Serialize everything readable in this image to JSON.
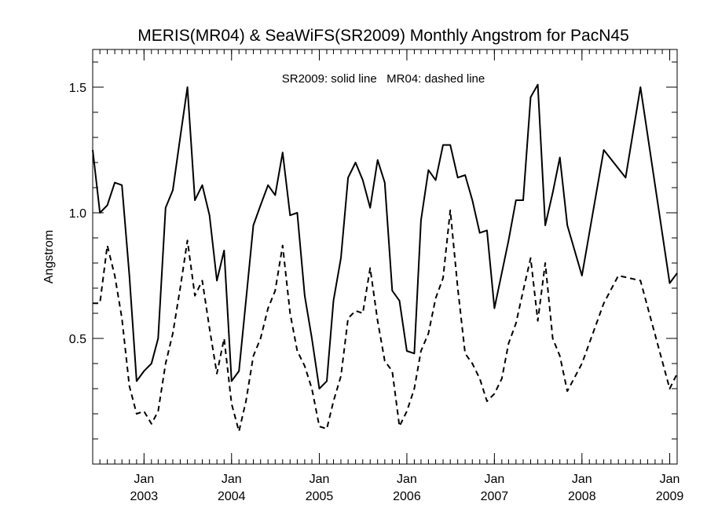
{
  "chart_data": {
    "type": "line",
    "title": "MERIS(MR04) & SeaWiFS(SR2009) Monthly Angstrom for PacN45",
    "annotation": "SR2009: solid line   MR04: dashed line",
    "ylabel": "Angstrom",
    "xlabel": "",
    "xlim": [
      "2002-06-01",
      "2009-02-01"
    ],
    "ylim": [
      0,
      1.65
    ],
    "y_major_ticks": [
      0.5,
      1.0,
      1.5
    ],
    "y_major_tick_labels": [
      "0.5",
      "1.0",
      "1.5"
    ],
    "y_minor_step": 0.1,
    "x_ticks": [
      {
        "date": "2003-01-01",
        "month_label": "Jan",
        "year_label": "2003"
      },
      {
        "date": "2004-01-01",
        "month_label": "Jan",
        "year_label": "2004"
      },
      {
        "date": "2005-01-01",
        "month_label": "Jan",
        "year_label": "2005"
      },
      {
        "date": "2006-01-01",
        "month_label": "Jan",
        "year_label": "2006"
      },
      {
        "date": "2007-01-01",
        "month_label": "Jan",
        "year_label": "2007"
      },
      {
        "date": "2008-01-01",
        "month_label": "Jan",
        "year_label": "2008"
      },
      {
        "date": "2009-01-01",
        "month_label": "Jan",
        "year_label": "2009"
      }
    ],
    "grid": false,
    "legend": "none",
    "series": [
      {
        "line_style": "solid",
        "color": "#000000",
        "points": [
          [
            "2002-06-01",
            1.25
          ],
          [
            "2002-07-01",
            1.0
          ],
          [
            "2002-08-01",
            1.03
          ],
          [
            "2002-09-01",
            1.12
          ],
          [
            "2002-10-01",
            1.11
          ],
          [
            "2002-11-01",
            0.75
          ],
          [
            "2002-12-01",
            0.33
          ],
          [
            "2003-01-01",
            0.37
          ],
          [
            "2003-02-01",
            0.4
          ],
          [
            "2003-03-01",
            0.5
          ],
          [
            "2003-04-01",
            1.02
          ],
          [
            "2003-05-01",
            1.09
          ],
          [
            "2003-06-01",
            1.3
          ],
          [
            "2003-07-01",
            1.5
          ],
          [
            "2003-08-01",
            1.05
          ],
          [
            "2003-09-01",
            1.11
          ],
          [
            "2003-10-01",
            0.99
          ],
          [
            "2003-11-01",
            0.73
          ],
          [
            "2003-12-01",
            0.85
          ],
          [
            "2004-01-01",
            0.33
          ],
          [
            "2004-02-01",
            0.37
          ],
          [
            "2004-03-01",
            0.65
          ],
          [
            "2004-04-01",
            0.95
          ],
          [
            "2004-05-01",
            1.03
          ],
          [
            "2004-06-01",
            1.11
          ],
          [
            "2004-07-01",
            1.07
          ],
          [
            "2004-08-01",
            1.24
          ],
          [
            "2004-09-01",
            0.99
          ],
          [
            "2004-10-01",
            1.0
          ],
          [
            "2004-11-01",
            0.67
          ],
          [
            "2004-12-01",
            0.5
          ],
          [
            "2005-01-01",
            0.3
          ],
          [
            "2005-02-01",
            0.33
          ],
          [
            "2005-03-01",
            0.65
          ],
          [
            "2005-04-01",
            0.82
          ],
          [
            "2005-05-01",
            1.14
          ],
          [
            "2005-06-01",
            1.2
          ],
          [
            "2005-07-01",
            1.13
          ],
          [
            "2005-08-01",
            1.02
          ],
          [
            "2005-09-01",
            1.21
          ],
          [
            "2005-10-01",
            1.12
          ],
          [
            "2005-11-01",
            0.69
          ],
          [
            "2005-12-01",
            0.65
          ],
          [
            "2006-01-01",
            0.45
          ],
          [
            "2006-02-01",
            0.44
          ],
          [
            "2006-03-01",
            0.97
          ],
          [
            "2006-04-01",
            1.17
          ],
          [
            "2006-05-01",
            1.13
          ],
          [
            "2006-06-01",
            1.27
          ],
          [
            "2006-07-01",
            1.27
          ],
          [
            "2006-08-01",
            1.14
          ],
          [
            "2006-09-01",
            1.15
          ],
          [
            "2006-10-01",
            1.05
          ],
          [
            "2006-11-01",
            0.92
          ],
          [
            "2006-12-01",
            0.93
          ],
          [
            "2007-01-01",
            0.62
          ],
          [
            "2007-03-01",
            0.89
          ],
          [
            "2007-04-01",
            1.05
          ],
          [
            "2007-05-01",
            1.05
          ],
          [
            "2007-06-01",
            1.46
          ],
          [
            "2007-07-01",
            1.51
          ],
          [
            "2007-08-01",
            0.95
          ],
          [
            "2007-09-01",
            1.08
          ],
          [
            "2007-10-01",
            1.22
          ],
          [
            "2007-11-01",
            0.95
          ],
          [
            "2008-01-01",
            0.75
          ],
          [
            "2008-04-01",
            1.25
          ],
          [
            "2008-07-01",
            1.14
          ],
          [
            "2008-09-01",
            1.5
          ],
          [
            "2009-01-01",
            0.72
          ],
          [
            "2009-02-01",
            0.76
          ]
        ]
      },
      {
        "line_style": "dashed",
        "color": "#000000",
        "points": [
          [
            "2002-06-01",
            0.64
          ],
          [
            "2002-07-01",
            0.64
          ],
          [
            "2002-08-01",
            0.87
          ],
          [
            "2002-09-01",
            0.75
          ],
          [
            "2002-10-01",
            0.58
          ],
          [
            "2002-11-01",
            0.31
          ],
          [
            "2002-12-01",
            0.2
          ],
          [
            "2003-01-01",
            0.21
          ],
          [
            "2003-02-01",
            0.16
          ],
          [
            "2003-03-01",
            0.21
          ],
          [
            "2003-04-01",
            0.4
          ],
          [
            "2003-05-01",
            0.52
          ],
          [
            "2003-06-01",
            0.7
          ],
          [
            "2003-07-01",
            0.89
          ],
          [
            "2003-08-01",
            0.67
          ],
          [
            "2003-09-01",
            0.73
          ],
          [
            "2003-10-01",
            0.54
          ],
          [
            "2003-11-01",
            0.36
          ],
          [
            "2003-12-01",
            0.5
          ],
          [
            "2004-01-01",
            0.24
          ],
          [
            "2004-02-01",
            0.13
          ],
          [
            "2004-03-01",
            0.25
          ],
          [
            "2004-04-01",
            0.43
          ],
          [
            "2004-05-01",
            0.5
          ],
          [
            "2004-06-01",
            0.62
          ],
          [
            "2004-07-01",
            0.69
          ],
          [
            "2004-08-01",
            0.87
          ],
          [
            "2004-09-01",
            0.6
          ],
          [
            "2004-10-01",
            0.45
          ],
          [
            "2004-11-01",
            0.39
          ],
          [
            "2004-12-01",
            0.3
          ],
          [
            "2005-01-01",
            0.15
          ],
          [
            "2005-02-01",
            0.14
          ],
          [
            "2005-03-01",
            0.25
          ],
          [
            "2005-04-01",
            0.35
          ],
          [
            "2005-05-01",
            0.58
          ],
          [
            "2005-06-01",
            0.61
          ],
          [
            "2005-07-01",
            0.6
          ],
          [
            "2005-08-01",
            0.78
          ],
          [
            "2005-09-01",
            0.57
          ],
          [
            "2005-10-01",
            0.41
          ],
          [
            "2005-11-01",
            0.37
          ],
          [
            "2005-12-01",
            0.15
          ],
          [
            "2006-01-01",
            0.21
          ],
          [
            "2006-02-01",
            0.3
          ],
          [
            "2006-03-01",
            0.45
          ],
          [
            "2006-04-01",
            0.52
          ],
          [
            "2006-05-01",
            0.66
          ],
          [
            "2006-06-01",
            0.74
          ],
          [
            "2006-07-01",
            1.01
          ],
          [
            "2006-08-01",
            0.7
          ],
          [
            "2006-09-01",
            0.44
          ],
          [
            "2006-10-01",
            0.4
          ],
          [
            "2006-11-01",
            0.34
          ],
          [
            "2006-12-01",
            0.25
          ],
          [
            "2007-01-01",
            0.28
          ],
          [
            "2007-02-01",
            0.34
          ],
          [
            "2007-03-01",
            0.48
          ],
          [
            "2007-04-01",
            0.56
          ],
          [
            "2007-05-01",
            0.69
          ],
          [
            "2007-06-01",
            0.82
          ],
          [
            "2007-07-01",
            0.57
          ],
          [
            "2007-08-01",
            0.8
          ],
          [
            "2007-09-01",
            0.5
          ],
          [
            "2007-10-01",
            0.43
          ],
          [
            "2007-11-01",
            0.29
          ],
          [
            "2008-01-01",
            0.4
          ],
          [
            "2008-04-01",
            0.64
          ],
          [
            "2008-06-01",
            0.75
          ],
          [
            "2008-09-01",
            0.73
          ],
          [
            "2009-01-01",
            0.3
          ],
          [
            "2009-02-01",
            0.36
          ]
        ]
      }
    ]
  }
}
